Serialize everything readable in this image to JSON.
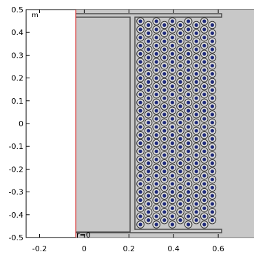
{
  "viewport": {
    "unit_label": "m",
    "axis_marker_label": "r=0",
    "x_ticks": [
      "-0.2",
      "0",
      "0.2",
      "0.4",
      "0.6"
    ],
    "y_ticks": [
      "0.5",
      "0.4",
      "0.3",
      "0.2",
      "0.1",
      "0",
      "-0.1",
      "-0.2",
      "-0.3",
      "-0.4",
      "-0.5"
    ],
    "x_range": [
      -0.26,
      0.76
    ],
    "y_range": [
      -0.5,
      0.5
    ]
  },
  "geometry": {
    "domain_fill": "#c8c8c8",
    "outline_color": "#4a4a4a",
    "axis_line_color": "#e03a3a",
    "conductor_fill": "#1f2a7a",
    "insulation_fill": "#d9d9d9",
    "coil_columns": 10,
    "coil_rows": 26
  }
}
